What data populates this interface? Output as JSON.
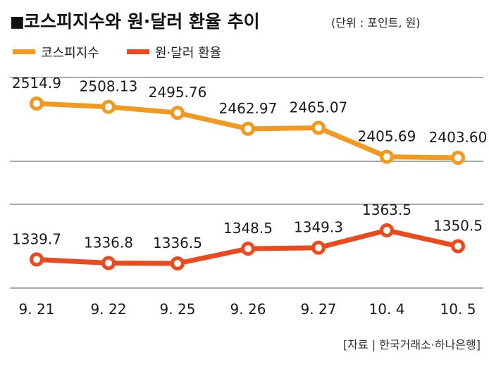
{
  "chart_data": {
    "type": "line",
    "title_marker": "■",
    "title": "코스피지수와 원·달러 환율 추이",
    "unit_note": "(단위 : 포인트, 원)",
    "categories": [
      "9. 21",
      "9. 22",
      "9. 25",
      "9. 26",
      "9. 27",
      "10. 4",
      "10. 5"
    ],
    "series": [
      {
        "name": "코스피지수",
        "color": "#f29a1f",
        "values": [
          2514.9,
          2508.13,
          2495.76,
          2462.97,
          2465.07,
          2405.69,
          2403.6
        ],
        "labels": [
          "2514.9",
          "2508.13",
          "2495.76",
          "2462.97",
          "2465.07",
          "2405.69",
          "2403.60"
        ]
      },
      {
        "name": "원·달러 환율",
        "color": "#ea4b1e",
        "values": [
          1339.7,
          1336.8,
          1336.5,
          1348.5,
          1349.3,
          1363.5,
          1350.5
        ],
        "labels": [
          "1339.7",
          "1336.8",
          "1336.5",
          "1348.5",
          "1349.3",
          "1363.5",
          "1350.5"
        ]
      }
    ],
    "source": "[자료 | 한국거래소·하나은행]",
    "grid": true,
    "legend_position": "top-left",
    "gridline_color": "#555555"
  }
}
